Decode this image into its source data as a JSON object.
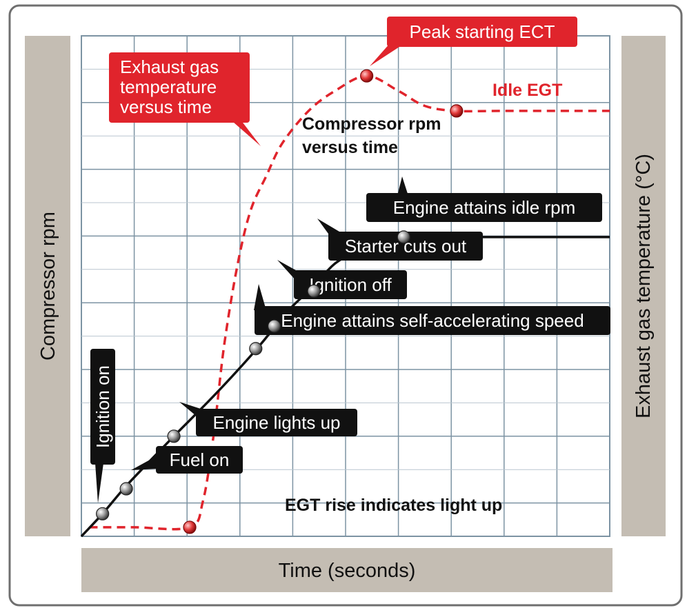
{
  "chart_data": {
    "type": "line",
    "title": "",
    "xlabel": "Time (seconds)",
    "ylabel_left": "Compressor rpm",
    "ylabel_right": "Exhaust gas temperature (°C)",
    "grid": true,
    "x_range": [
      0,
      10
    ],
    "y_range": [
      0,
      10
    ],
    "series": [
      {
        "name": "Compressor rpm versus time",
        "style": "solid",
        "color": "#111111",
        "points": [
          [
            0,
            0
          ],
          [
            0.4,
            0.45
          ],
          [
            0.8,
            0.95
          ],
          [
            1.2,
            1.4
          ],
          [
            1.75,
            2.0
          ],
          [
            2.5,
            2.8
          ],
          [
            3.2,
            3.6
          ],
          [
            3.6,
            4.1
          ],
          [
            4.0,
            4.6
          ],
          [
            4.4,
            5.0
          ],
          [
            4.8,
            5.45
          ],
          [
            5.3,
            5.75
          ],
          [
            5.8,
            5.95
          ],
          [
            6.2,
            5.98
          ],
          [
            7,
            5.98
          ],
          [
            10,
            5.98
          ]
        ]
      },
      {
        "name": "Exhaust gas temperature versus time",
        "style": "dashed",
        "color": "#e0242c",
        "points": [
          [
            0.15,
            0.18
          ],
          [
            1.0,
            0.18
          ],
          [
            2.05,
            0.18
          ],
          [
            2.3,
            0.7
          ],
          [
            2.5,
            2.0
          ],
          [
            2.7,
            3.8
          ],
          [
            2.95,
            5.4
          ],
          [
            3.2,
            6.5
          ],
          [
            3.5,
            7.2
          ],
          [
            3.8,
            7.85
          ],
          [
            4.3,
            8.5
          ],
          [
            4.8,
            8.9
          ],
          [
            5.4,
            9.2
          ],
          [
            6.0,
            8.9
          ],
          [
            6.5,
            8.6
          ],
          [
            7.1,
            8.5
          ],
          [
            8.0,
            8.5
          ],
          [
            10,
            8.5
          ]
        ]
      }
    ],
    "markers": [
      {
        "name": "ignition-on-point",
        "series": "rpm",
        "x": 0.4,
        "y": 0.45
      },
      {
        "name": "fuel-on-point",
        "series": "rpm",
        "x": 0.85,
        "y": 0.95
      },
      {
        "name": "engine-lights-up-point",
        "series": "rpm",
        "x": 1.75,
        "y": 2.0
      },
      {
        "name": "self-accelerating-point",
        "series": "rpm",
        "x": 3.3,
        "y": 3.75
      },
      {
        "name": "ignition-off-point",
        "series": "rpm",
        "x": 3.65,
        "y": 4.2
      },
      {
        "name": "starter-cuts-out-point",
        "series": "rpm",
        "x": 4.4,
        "y": 4.9
      },
      {
        "name": "idle-rpm-point",
        "series": "rpm",
        "x": 6.1,
        "y": 5.98
      },
      {
        "name": "egt-light-up-point",
        "series": "egt",
        "x": 2.05,
        "y": 0.18
      },
      {
        "name": "peak-ect-point",
        "series": "egt",
        "x": 5.4,
        "y": 9.2
      },
      {
        "name": "idle-egt-point",
        "series": "egt",
        "x": 7.1,
        "y": 8.5
      }
    ],
    "annotations": {
      "ignition_on": "Ignition on",
      "fuel_on": "Fuel on",
      "engine_lights_up": "Engine lights up",
      "self_accelerating": "Engine attains self-accelerating speed",
      "ignition_off": "Ignition off",
      "starter_cuts_out": "Starter cuts out",
      "idle_rpm": "Engine attains idle rpm",
      "rpm_curve_label": [
        "Compressor rpm",
        "versus time"
      ],
      "egt_curve_label": [
        "Exhaust gas",
        "temperature",
        "versus time"
      ],
      "peak_ect": "Peak starting ECT",
      "idle_egt": "Idle EGT",
      "egt_rise": "EGT rise indicates light up"
    }
  },
  "colors": {
    "frame": "#6f6f6f",
    "panel": "#c4bdb3",
    "grid": "#7c93a3",
    "grid_minor": "#b9c6cf",
    "callout_dark": "#111111",
    "callout_red": "#e0242c",
    "text_dark": "#111111"
  }
}
